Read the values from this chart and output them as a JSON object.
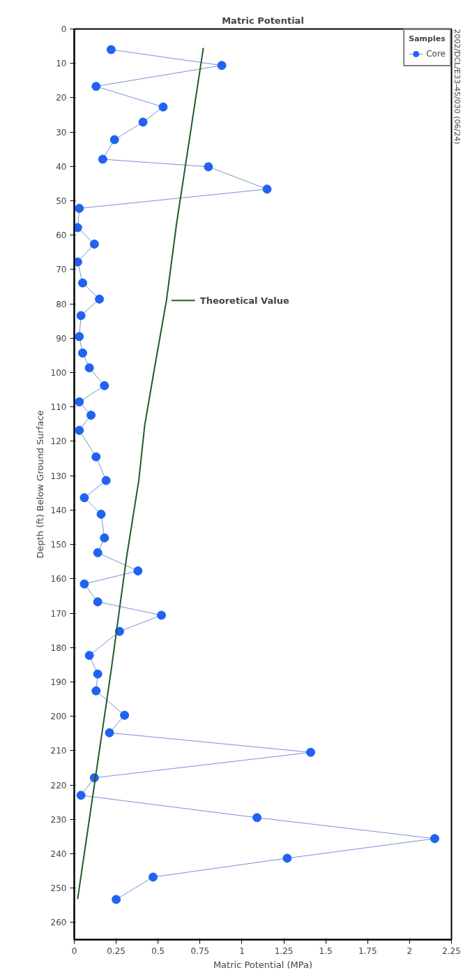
{
  "chart_data": {
    "type": "line",
    "title": "Matric Potential",
    "xlabel": "Matric Potential (MPa)",
    "ylabel": "Depth (ft) Below Ground Surface",
    "legend_title": "Samples",
    "annotations": [
      "2002/DCL/E33-45/030 (06/24)"
    ],
    "series": [
      {
        "name": "Core",
        "color": "#1f63f0",
        "marker": "circle",
        "x": [
          0.22,
          0.88,
          0.13,
          0.53,
          0.41,
          0.24,
          0.17,
          0.8,
          1.15,
          0.03,
          0.02,
          0.12,
          0.02,
          0.05,
          0.15,
          0.04,
          0.03,
          0.05,
          0.09,
          0.18,
          0.03,
          0.1,
          0.03,
          0.13,
          0.19,
          0.06,
          0.16,
          0.18,
          0.14,
          0.38,
          0.06,
          0.14,
          0.52,
          0.27,
          0.09,
          0.14,
          0.13,
          0.3,
          0.21,
          1.41,
          0.12,
          0.04,
          1.09,
          2.15,
          1.27,
          0.47,
          0.25
        ],
        "values": [
          6,
          10.6,
          16.7,
          22.7,
          27.1,
          32.2,
          37.9,
          40.1,
          46.6,
          52.2,
          57.8,
          62.6,
          67.8,
          73.9,
          78.6,
          83.4,
          89.5,
          94.3,
          98.6,
          103.8,
          108.5,
          112.4,
          116.8,
          124.5,
          131.4,
          136.4,
          141.2,
          148.1,
          152.4,
          157.7,
          161.5,
          166.7,
          170.6,
          175.3,
          182.3,
          187.7,
          192.6,
          199.7,
          204.8,
          210.5,
          217.9,
          223.0,
          229.5,
          235.6,
          241.3,
          246.8,
          253.3
        ]
      },
      {
        "name": "Theoretical Value",
        "color": "#1e5c2a",
        "marker": "none",
        "x": [
          0.77,
          0.61,
          0.55,
          0.48,
          0.42,
          0.385,
          0.31,
          0.22,
          0.02
        ],
        "values": [
          5.5,
          56.7,
          79,
          98.3,
          115.4,
          131.3,
          154.4,
          186.7,
          253.2
        ]
      }
    ],
    "xlim": [
      0,
      2.25
    ],
    "xticks": [
      0,
      0.25,
      0.5,
      0.75,
      1,
      1.25,
      1.5,
      1.75,
      2,
      2.25
    ],
    "ylim": [
      265,
      0
    ],
    "yticks": [
      0,
      10,
      20,
      30,
      40,
      50,
      60,
      70,
      80,
      90,
      100,
      110,
      120,
      130,
      140,
      150,
      160,
      170,
      180,
      190,
      200,
      210,
      220,
      230,
      240,
      250,
      260
    ],
    "grid": false,
    "legend": "top right"
  }
}
